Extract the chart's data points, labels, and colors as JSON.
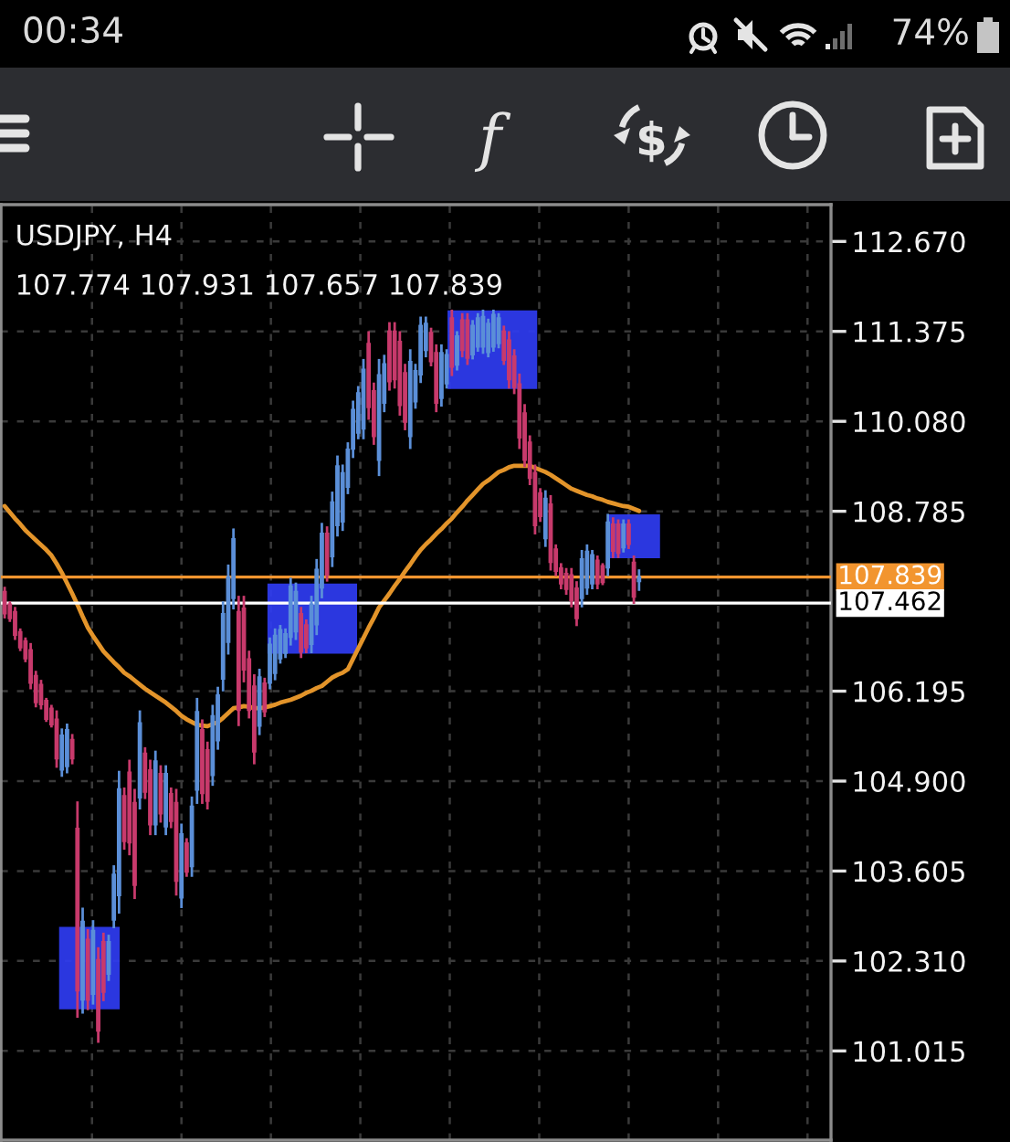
{
  "chart_data": {
    "type": "candlestick",
    "title": "USDJPY, H4",
    "subtitle": "107.774 107.931 107.657 107.839",
    "annotations": [
      "00:34",
      "74%"
    ],
    "categories": [
      null,
      null,
      null,
      null,
      null,
      null,
      null,
      null,
      null,
      null,
      null,
      null,
      null,
      null,
      null,
      null,
      null,
      null,
      null,
      null,
      null,
      null,
      null,
      null,
      null,
      null,
      null,
      null,
      null,
      null,
      null,
      null,
      null,
      null,
      null,
      null,
      null,
      null,
      null,
      null,
      null,
      null,
      null,
      null,
      null,
      null,
      null,
      null,
      null,
      null,
      null,
      null,
      null,
      null,
      null,
      null,
      null,
      null,
      null,
      null,
      null,
      null,
      null,
      null,
      null,
      null,
      null,
      null,
      null,
      null,
      null,
      null,
      null,
      null,
      null,
      null,
      null,
      null,
      null,
      null,
      null,
      null,
      null,
      null,
      null,
      null,
      null,
      null,
      null,
      null,
      null,
      null,
      null,
      null,
      null,
      null,
      null,
      null,
      null,
      null,
      null,
      null,
      null,
      null,
      null,
      null,
      null,
      null,
      null,
      null,
      null,
      null,
      null,
      null,
      null,
      null,
      null,
      null,
      null,
      null,
      null,
      null,
      null
    ],
    "ohlc": [
      [
        107.63,
        107.68,
        107.26,
        107.31
      ],
      [
        107.45,
        107.47,
        107.21,
        107.24
      ],
      [
        107.34,
        107.39,
        106.95,
        107.0
      ],
      [
        107.05,
        107.08,
        106.79,
        106.82
      ],
      [
        106.92,
        106.95,
        106.63,
        106.66
      ],
      [
        106.79,
        106.87,
        106.24,
        106.31
      ],
      [
        106.42,
        106.47,
        105.98,
        106.03
      ],
      [
        106.29,
        106.34,
        105.95,
        106.0
      ],
      [
        106.06,
        106.08,
        105.77,
        105.79
      ],
      [
        105.95,
        105.98,
        105.69,
        105.71
      ],
      [
        105.79,
        105.9,
        105.11,
        105.22
      ],
      [
        105.06,
        105.64,
        104.98,
        105.56
      ],
      [
        105.11,
        105.71,
        105.03,
        105.64
      ],
      [
        105.5,
        105.56,
        105.16,
        105.22
      ],
      [
        104.22,
        104.59,
        101.51,
        101.88
      ],
      [
        101.75,
        103.06,
        101.57,
        102.88
      ],
      [
        102.62,
        102.75,
        101.62,
        101.75
      ],
      [
        101.83,
        102.88,
        101.7,
        102.75
      ],
      [
        102.33,
        102.49,
        101.15,
        101.3
      ],
      [
        102.59,
        102.7,
        101.75,
        101.86
      ],
      [
        102.12,
        102.67,
        102.04,
        102.59
      ],
      [
        102.9,
        103.67,
        102.8,
        103.56
      ],
      [
        103.25,
        105.03,
        103.01,
        104.79
      ],
      [
        104.69,
        104.79,
        103.93,
        104.03
      ],
      [
        105.03,
        105.19,
        103.85,
        104.01
      ],
      [
        104.59,
        104.77,
        103.22,
        103.4
      ],
      [
        104.66,
        105.9,
        104.51,
        105.74
      ],
      [
        105.3,
        105.37,
        104.66,
        104.74
      ],
      [
        105.06,
        105.19,
        104.14,
        104.27
      ],
      [
        104.27,
        105.32,
        104.14,
        105.19
      ],
      [
        105.01,
        105.11,
        104.32,
        104.43
      ],
      [
        104.24,
        105.11,
        104.14,
        105.01
      ],
      [
        104.72,
        104.79,
        104.24,
        104.32
      ],
      [
        104.59,
        104.77,
        103.27,
        103.46
      ],
      [
        103.22,
        104.27,
        103.09,
        104.14
      ],
      [
        104.01,
        104.06,
        103.54,
        103.59
      ],
      [
        103.67,
        104.66,
        103.54,
        104.54
      ],
      [
        104.77,
        106.08,
        104.59,
        105.9
      ],
      [
        105.64,
        105.77,
        104.59,
        104.72
      ],
      [
        105.35,
        105.45,
        104.51,
        104.61
      ],
      [
        104.98,
        105.98,
        104.85,
        105.84
      ],
      [
        105.48,
        106.24,
        105.37,
        106.14
      ],
      [
        106.37,
        107.47,
        106.21,
        107.31
      ],
      [
        106.9,
        108.0,
        106.74,
        107.84
      ],
      [
        107.53,
        108.52,
        107.39,
        108.39
      ],
      [
        107.34,
        107.55,
        105.71,
        105.92
      ],
      [
        107.39,
        107.55,
        106.34,
        106.5
      ],
      [
        106.66,
        106.76,
        105.82,
        105.92
      ],
      [
        106.27,
        106.42,
        105.16,
        105.32
      ],
      [
        105.69,
        106.5,
        105.58,
        106.4
      ],
      [
        106.31,
        106.37,
        105.84,
        105.9
      ],
      [
        106.31,
        106.95,
        106.24,
        106.87
      ],
      [
        106.45,
        107.08,
        106.37,
        107.0
      ],
      [
        106.66,
        107.13,
        106.61,
        107.08
      ],
      [
        106.74,
        107.08,
        106.69,
        107.02
      ],
      [
        106.97,
        107.81,
        106.87,
        107.71
      ],
      [
        107.05,
        107.74,
        106.95,
        107.63
      ],
      [
        107.31,
        107.39,
        106.69,
        106.76
      ],
      [
        107.15,
        107.21,
        106.76,
        106.82
      ],
      [
        106.87,
        107.55,
        106.76,
        107.45
      ],
      [
        107.15,
        108.08,
        107.02,
        107.95
      ],
      [
        107.68,
        108.6,
        107.55,
        108.47
      ],
      [
        108.47,
        108.55,
        107.79,
        107.87
      ],
      [
        108.13,
        109.05,
        108.0,
        108.92
      ],
      [
        108.58,
        109.57,
        108.44,
        109.44
      ],
      [
        108.63,
        109.44,
        108.52,
        109.34
      ],
      [
        109.13,
        109.76,
        109.05,
        109.68
      ],
      [
        109.68,
        110.36,
        109.57,
        110.25
      ],
      [
        109.91,
        110.57,
        109.84,
        110.49
      ],
      [
        109.97,
        110.96,
        109.84,
        110.83
      ],
      [
        111.2,
        111.36,
        110.12,
        110.28
      ],
      [
        110.52,
        110.62,
        109.76,
        109.86
      ],
      [
        109.52,
        110.96,
        109.31,
        110.75
      ],
      [
        110.34,
        111.02,
        110.23,
        110.91
      ],
      [
        111.38,
        111.49,
        110.54,
        110.65
      ],
      [
        111.38,
        111.49,
        110.57,
        110.68
      ],
      [
        111.23,
        111.36,
        110.18,
        110.31
      ],
      [
        110.78,
        110.89,
        109.97,
        110.07
      ],
      [
        109.86,
        111.1,
        109.7,
        110.94
      ],
      [
        110.36,
        110.89,
        110.28,
        110.81
      ],
      [
        110.75,
        111.57,
        110.65,
        111.46
      ],
      [
        111.1,
        111.57,
        111.02,
        111.49
      ],
      [
        111.36,
        111.41,
        110.89,
        110.94
      ],
      [
        111.07,
        111.17,
        110.23,
        110.34
      ],
      [
        110.41,
        111.17,
        110.31,
        111.07
      ],
      [
        110.62,
        111.1,
        110.57,
        111.04
      ],
      [
        111.57,
        111.67,
        110.75,
        110.86
      ],
      [
        110.89,
        111.36,
        110.83,
        111.31
      ],
      [
        111.54,
        111.62,
        111.02,
        111.1
      ],
      [
        111.54,
        111.62,
        110.91,
        110.99
      ],
      [
        111.04,
        111.52,
        110.99,
        111.46
      ],
      [
        111.15,
        111.62,
        111.1,
        111.57
      ],
      [
        111.15,
        111.67,
        111.07,
        111.59
      ],
      [
        111.07,
        111.54,
        111.02,
        111.49
      ],
      [
        111.15,
        111.67,
        111.1,
        111.62
      ],
      [
        111.2,
        111.62,
        111.15,
        111.57
      ],
      [
        111.38,
        111.44,
        110.91,
        110.96
      ],
      [
        111.25,
        111.36,
        110.57,
        110.68
      ],
      [
        111.02,
        111.1,
        110.49,
        110.57
      ],
      [
        110.62,
        110.75,
        109.7,
        109.84
      ],
      [
        110.2,
        110.31,
        109.44,
        109.52
      ],
      [
        109.78,
        109.86,
        109.18,
        109.26
      ],
      [
        109.34,
        109.44,
        108.47,
        108.58
      ],
      [
        109.05,
        109.1,
        108.65,
        108.71
      ],
      [
        108.39,
        109.07,
        108.29,
        108.97
      ],
      [
        108.89,
        109.0,
        107.95,
        108.05
      ],
      [
        108.24,
        108.29,
        107.87,
        107.92
      ],
      [
        107.97,
        108.02,
        107.68,
        107.74
      ],
      [
        107.89,
        107.95,
        107.6,
        107.66
      ],
      [
        107.87,
        107.95,
        107.42,
        107.5
      ],
      [
        107.68,
        107.76,
        107.15,
        107.24
      ],
      [
        107.53,
        108.21,
        107.42,
        108.1
      ],
      [
        107.68,
        108.29,
        107.6,
        108.21
      ],
      [
        107.74,
        108.21,
        107.68,
        108.16
      ],
      [
        108.08,
        108.13,
        107.68,
        107.74
      ],
      [
        108.0,
        108.02,
        107.74,
        107.76
      ],
      [
        107.97,
        108.73,
        107.87,
        108.63
      ],
      [
        108.6,
        108.68,
        108.13,
        108.21
      ],
      [
        108.6,
        108.65,
        108.13,
        108.18
      ],
      [
        108.26,
        108.65,
        108.21,
        108.6
      ],
      [
        108.6,
        108.65,
        108.26,
        108.31
      ],
      [
        108.05,
        108.13,
        107.47,
        107.55
      ],
      [
        107.774,
        107.931,
        107.657,
        107.839
      ]
    ],
    "colors": [
      "#c83a6c",
      "#c83a6c",
      "#c83a6c",
      "#c83a6c",
      "#c83a6c",
      "#c83a6c",
      "#c83a6c",
      "#c83a6c",
      "#c83a6c",
      "#c83a6c",
      "#c83a6c",
      "#5b8fd8",
      "#5b8fd8",
      "#c83a6c",
      "#c83a6c",
      "#5b8fd8",
      "#c83a6c",
      "#5b8fd8",
      "#c83a6c",
      "#c83a6c",
      "#5b8fd8",
      "#5b8fd8",
      "#5b8fd8",
      "#c83a6c",
      "#c83a6c",
      "#c83a6c",
      "#5b8fd8",
      "#c83a6c",
      "#c83a6c",
      "#5b8fd8",
      "#c83a6c",
      "#5b8fd8",
      "#c83a6c",
      "#c83a6c",
      "#5b8fd8",
      "#c83a6c",
      "#5b8fd8",
      "#5b8fd8",
      "#c83a6c",
      "#c83a6c",
      "#5b8fd8",
      "#5b8fd8",
      "#5b8fd8",
      "#5b8fd8",
      "#5b8fd8",
      "#c83a6c",
      "#c83a6c",
      "#c83a6c",
      "#c83a6c",
      "#5b8fd8",
      "#c83a6c",
      "#5b8fd8",
      "#5b8fd8",
      "#5b8fd8",
      "#5b8fd8",
      "#5b8fd8",
      "#5b8fd8",
      "#c83a6c",
      "#c83a6c",
      "#5b8fd8",
      "#5b8fd8",
      "#5b8fd8",
      "#c83a6c",
      "#5b8fd8",
      "#5b8fd8",
      "#5b8fd8",
      "#5b8fd8",
      "#5b8fd8",
      "#5b8fd8",
      "#5b8fd8",
      "#c83a6c",
      "#c83a6c",
      "#5b8fd8",
      "#5b8fd8",
      "#c83a6c",
      "#c83a6c",
      "#c83a6c",
      "#c83a6c",
      "#5b8fd8",
      "#5b8fd8",
      "#5b8fd8",
      "#5b8fd8",
      "#c83a6c",
      "#c83a6c",
      "#5b8fd8",
      "#5b8fd8",
      "#c83a6c",
      "#5b8fd8",
      "#c83a6c",
      "#c83a6c",
      "#5b8fd8",
      "#5b8fd8",
      "#5b8fd8",
      "#5b8fd8",
      "#5b8fd8",
      "#5b8fd8",
      "#c83a6c",
      "#c83a6c",
      "#c83a6c",
      "#c83a6c",
      "#c83a6c",
      "#c83a6c",
      "#c83a6c",
      "#c83a6c",
      "#5b8fd8",
      "#c83a6c",
      "#c83a6c",
      "#c83a6c",
      "#c83a6c",
      "#c83a6c",
      "#c83a6c",
      "#5b8fd8",
      "#5b8fd8",
      "#5b8fd8",
      "#c83a6c",
      "#c83a6c",
      "#5b8fd8",
      "#c83a6c",
      "#c83a6c",
      "#5b8fd8",
      "#c83a6c",
      "#c83a6c",
      "#5b8fd8"
    ],
    "series": [
      {
        "type": "line",
        "color": "#e3942a",
        "values": [
          108.86,
          108.77,
          108.68,
          108.6,
          108.51,
          108.44,
          108.37,
          108.3,
          108.23,
          108.15,
          108.03,
          107.9,
          107.75,
          107.6,
          107.44,
          107.27,
          107.11,
          106.99,
          106.88,
          106.77,
          106.69,
          106.61,
          106.54,
          106.46,
          106.41,
          106.35,
          106.29,
          106.23,
          106.18,
          106.13,
          106.08,
          106.03,
          105.97,
          105.91,
          105.84,
          105.79,
          105.75,
          105.71,
          105.7,
          105.69,
          105.72,
          105.75,
          105.81,
          105.88,
          105.95,
          105.96,
          105.98,
          105.97,
          105.95,
          105.95,
          105.96,
          105.98,
          106.0,
          106.03,
          106.05,
          106.07,
          106.1,
          106.13,
          106.17,
          106.2,
          106.24,
          106.27,
          106.33,
          106.39,
          106.43,
          106.46,
          106.51,
          106.66,
          106.81,
          106.96,
          107.11,
          107.25,
          107.4,
          107.5,
          107.6,
          107.71,
          107.81,
          107.92,
          108.02,
          108.13,
          108.23,
          108.31,
          108.38,
          108.46,
          108.53,
          108.61,
          108.68,
          108.77,
          108.85,
          108.94,
          109.02,
          109.1,
          109.18,
          109.23,
          109.29,
          109.35,
          109.38,
          109.42,
          109.44,
          109.44,
          109.44,
          109.44,
          109.41,
          109.38,
          109.35,
          109.31,
          109.26,
          109.21,
          109.16,
          109.11,
          109.08,
          109.05,
          109.02,
          109.0,
          108.97,
          108.95,
          108.92,
          108.9,
          108.88,
          108.86,
          108.85,
          108.82,
          108.79
        ]
      }
    ],
    "ylim": [
      99.73,
      113.2
    ],
    "yticks": [
      {
        "value": 112.67,
        "label": "112.670"
      },
      {
        "value": 111.375,
        "label": "111.375"
      },
      {
        "value": 110.08,
        "label": "110.080"
      },
      {
        "value": 108.785,
        "label": "108.785"
      },
      {
        "value": 106.195,
        "label": "106.195"
      },
      {
        "value": 104.9,
        "label": "104.900"
      },
      {
        "value": 103.605,
        "label": "103.605"
      },
      {
        "value": 102.31,
        "label": "102.310"
      },
      {
        "value": 101.015,
        "label": "101.015"
      }
    ],
    "ref_lines": [
      {
        "axis": "y",
        "value": 107.839,
        "label": "107.839",
        "color": "#f2952f"
      },
      {
        "axis": "y",
        "value": 107.462,
        "label": "107.462",
        "color": "#ffffff"
      }
    ],
    "grid": true,
    "tick_labels": "y"
  }
}
